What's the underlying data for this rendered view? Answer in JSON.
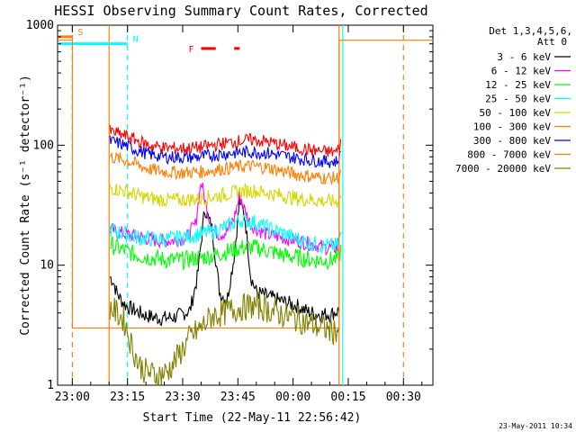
{
  "chart_data": {
    "type": "line",
    "title": "HESSI Observing Summary Count Rates, Corrected",
    "xlabel": "Start Time (22-May-11 22:56:42)",
    "ylabel": "Corrected Count Rate (s⁻¹ detector⁻¹)",
    "yscale": "log",
    "ylim": [
      1,
      1000
    ],
    "xlim_minutes": [
      -4,
      98
    ],
    "x_ticks": [
      {
        "label": "23:00",
        "t": 0
      },
      {
        "label": "23:15",
        "t": 15
      },
      {
        "label": "23:30",
        "t": 30
      },
      {
        "label": "23:45",
        "t": 45
      },
      {
        "label": "00:00",
        "t": 60
      },
      {
        "label": "00:15",
        "t": 75
      },
      {
        "label": "00:30",
        "t": 90
      }
    ],
    "y_ticks": [
      {
        "label": "1",
        "v": 1
      },
      {
        "label": "10",
        "v": 10
      },
      {
        "label": "100",
        "v": 100
      },
      {
        "label": "1000",
        "v": 1000
      }
    ],
    "legend_header": [
      "Det 1,3,4,5,6,",
      "Att 0"
    ],
    "legend_position": "right",
    "series": [
      {
        "name": "3 - 6 keV",
        "color": "#000000",
        "points": [
          [
            10.2,
            8
          ],
          [
            11,
            7.5
          ],
          [
            12,
            6
          ],
          [
            13,
            5.3
          ],
          [
            14,
            4.8
          ],
          [
            15,
            4.5
          ],
          [
            17,
            4.2
          ],
          [
            20,
            3.8
          ],
          [
            24,
            3.6
          ],
          [
            28,
            3.7
          ],
          [
            32,
            4.2
          ],
          [
            34,
            8
          ],
          [
            36,
            30
          ],
          [
            38,
            20
          ],
          [
            40,
            6
          ],
          [
            42,
            5
          ],
          [
            44,
            12
          ],
          [
            45.5,
            35
          ],
          [
            47,
            24
          ],
          [
            48.5,
            8
          ],
          [
            50,
            6
          ],
          [
            53,
            5.5
          ],
          [
            57,
            5
          ],
          [
            61,
            4.6
          ],
          [
            64,
            4.1
          ],
          [
            67,
            3.9
          ],
          [
            70,
            3.9
          ],
          [
            72.5,
            4.2
          ]
        ]
      },
      {
        "name": "6 - 12 keV",
        "color": "#ff00ff",
        "points": [
          [
            10.2,
            20
          ],
          [
            12,
            19
          ],
          [
            15,
            18
          ],
          [
            19,
            17
          ],
          [
            23,
            16
          ],
          [
            27,
            16
          ],
          [
            31,
            17
          ],
          [
            33.5,
            22
          ],
          [
            35,
            50
          ],
          [
            36.5,
            30
          ],
          [
            38,
            20
          ],
          [
            40,
            18
          ],
          [
            42,
            19
          ],
          [
            44,
            25
          ],
          [
            45.5,
            38
          ],
          [
            47,
            28
          ],
          [
            48.5,
            22
          ],
          [
            50,
            20
          ],
          [
            53,
            18
          ],
          [
            57,
            17
          ],
          [
            61,
            16
          ],
          [
            65,
            15
          ],
          [
            69,
            14
          ],
          [
            72,
            14
          ],
          [
            72.8,
            20
          ]
        ]
      },
      {
        "name": "12 - 25 keV",
        "color": "#00ff00",
        "points": [
          [
            10.2,
            15
          ],
          [
            12,
            14
          ],
          [
            15,
            13
          ],
          [
            18,
            12
          ],
          [
            22,
            11.5
          ],
          [
            26,
            11
          ],
          [
            30,
            11
          ],
          [
            34,
            11.5
          ],
          [
            38,
            12
          ],
          [
            42,
            13
          ],
          [
            46,
            14
          ],
          [
            50,
            14
          ],
          [
            54,
            13
          ],
          [
            58,
            12
          ],
          [
            62,
            11.5
          ],
          [
            66,
            11
          ],
          [
            70,
            11
          ],
          [
            72.5,
            11.5
          ],
          [
            73,
            14
          ]
        ]
      },
      {
        "name": "25 - 50 keV",
        "color": "#00ffff",
        "points": [
          [
            10.2,
            20
          ],
          [
            12,
            19
          ],
          [
            15,
            18
          ],
          [
            18,
            17
          ],
          [
            22,
            16.5
          ],
          [
            26,
            16.5
          ],
          [
            30,
            17
          ],
          [
            34,
            18
          ],
          [
            38,
            19
          ],
          [
            42,
            21
          ],
          [
            46,
            24
          ],
          [
            49,
            23
          ],
          [
            52,
            21
          ],
          [
            56,
            19
          ],
          [
            60,
            17
          ],
          [
            64,
            15.5
          ],
          [
            68,
            14.5
          ],
          [
            72,
            14.5
          ],
          [
            73,
            18
          ]
        ]
      },
      {
        "name": "50 - 100 keV",
        "color": "#d6d600",
        "points": [
          [
            10.2,
            44
          ],
          [
            12,
            43
          ],
          [
            15,
            41
          ],
          [
            18,
            38
          ],
          [
            21,
            36
          ],
          [
            25,
            35
          ],
          [
            30,
            35
          ],
          [
            35,
            36
          ],
          [
            40,
            38
          ],
          [
            45,
            41
          ],
          [
            49,
            42
          ],
          [
            53,
            40
          ],
          [
            57,
            38
          ],
          [
            61,
            36
          ],
          [
            65,
            35
          ],
          [
            69,
            34
          ],
          [
            72,
            34
          ],
          [
            73,
            38
          ]
        ]
      },
      {
        "name": "100 - 300 keV",
        "color": "#ff7f00",
        "points": [
          [
            10.2,
            80
          ],
          [
            12,
            78
          ],
          [
            15,
            74
          ],
          [
            18,
            68
          ],
          [
            21,
            63
          ],
          [
            25,
            60
          ],
          [
            30,
            59
          ],
          [
            35,
            60
          ],
          [
            40,
            63
          ],
          [
            45,
            66
          ],
          [
            49,
            67
          ],
          [
            53,
            65
          ],
          [
            57,
            61
          ],
          [
            61,
            57
          ],
          [
            65,
            55
          ],
          [
            69,
            53
          ],
          [
            72,
            53
          ],
          [
            73,
            60
          ]
        ]
      },
      {
        "name": "300 - 800 keV",
        "color": "#0000ff",
        "points": [
          [
            10.2,
            108
          ],
          [
            12,
            105
          ],
          [
            15,
            98
          ],
          [
            18,
            90
          ],
          [
            21,
            84
          ],
          [
            25,
            80
          ],
          [
            30,
            79
          ],
          [
            35,
            80
          ],
          [
            40,
            84
          ],
          [
            45,
            87
          ],
          [
            49,
            88
          ],
          [
            53,
            86
          ],
          [
            57,
            82
          ],
          [
            61,
            78
          ],
          [
            65,
            75
          ],
          [
            69,
            73
          ],
          [
            72,
            73
          ],
          [
            73,
            85
          ]
        ]
      },
      {
        "name": "800 - 7000 keV",
        "color": "#ff7f00",
        "points": [
          [
            -4,
            750
          ],
          [
            0,
            750
          ],
          [
            0,
            3
          ],
          [
            9,
            3
          ],
          [
            11,
            3
          ],
          [
            25,
            3
          ],
          [
            30,
            3
          ],
          [
            72.5,
            3
          ],
          [
            72.5,
            750
          ],
          [
            98,
            750
          ]
        ]
      },
      {
        "name": "7000 - 20000 keV",
        "color": "#808000",
        "points": [
          [
            10.2,
            4.5
          ],
          [
            12,
            4
          ],
          [
            14,
            3.5
          ],
          [
            16,
            2.2
          ],
          [
            18,
            1.5
          ],
          [
            20,
            1.3
          ],
          [
            23,
            1.2
          ],
          [
            26,
            1.3
          ],
          [
            29,
            1.8
          ],
          [
            32,
            2.5
          ],
          [
            35,
            3
          ],
          [
            38,
            3.8
          ],
          [
            41,
            4
          ],
          [
            44,
            4.3
          ],
          [
            47,
            4.5
          ],
          [
            50,
            4.6
          ],
          [
            53,
            4.3
          ],
          [
            56,
            4
          ],
          [
            59,
            3.7
          ],
          [
            62,
            3.5
          ],
          [
            65,
            3.2
          ],
          [
            68,
            3
          ],
          [
            71,
            2.8
          ],
          [
            72.5,
            3
          ]
        ]
      }
    ],
    "red_series": {
      "color": "#ff0000",
      "points": [
        [
          10.2,
          130
        ],
        [
          12,
          126
        ],
        [
          15,
          118
        ],
        [
          18,
          108
        ],
        [
          21,
          100
        ],
        [
          25,
          95
        ],
        [
          30,
          94
        ],
        [
          35,
          96
        ],
        [
          40,
          102
        ],
        [
          45,
          108
        ],
        [
          49,
          111
        ],
        [
          53,
          107
        ],
        [
          57,
          100
        ],
        [
          61,
          95
        ],
        [
          65,
          91
        ],
        [
          69,
          88
        ],
        [
          72,
          88
        ],
        [
          73,
          110
        ]
      ]
    },
    "flags": [
      {
        "label": "S",
        "color": "#ff7f00",
        "t_start": -4,
        "t_end": 0,
        "level": 800
      },
      {
        "label": "N",
        "color": "#00ffff",
        "t_start": -4,
        "t_end": 15,
        "level": 700
      },
      {
        "label": "F",
        "color": "#ff0000",
        "segments": [
          [
            35,
            39
          ],
          [
            44,
            45.5
          ]
        ],
        "level": 640
      }
    ],
    "vertical_markers": [
      {
        "t": 0,
        "color": "#ff7f00",
        "style": "dashed"
      },
      {
        "t": 15,
        "color": "#00ffff",
        "style": "dashed"
      },
      {
        "t": 90,
        "color": "#ff7f00",
        "style": "dashed"
      },
      {
        "t": 10,
        "color": "#ff7f00",
        "style": "solid"
      },
      {
        "t": 72.5,
        "color": "#ff7f00",
        "style": "solid"
      },
      {
        "t": 73.5,
        "color": "#00ffff",
        "style": "solid"
      }
    ],
    "footer_date": "23-May-2011 10:34"
  }
}
